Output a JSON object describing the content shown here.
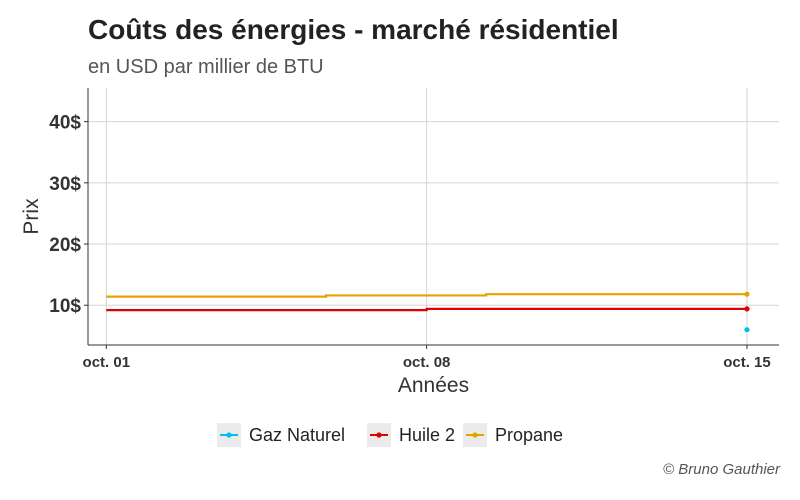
{
  "title": "Coûts des énergies - marché résidentiel",
  "subtitle": "en USD par millier de BTU",
  "caption": "© Bruno Gauthier",
  "chart_data": {
    "type": "line",
    "xlabel": "Années",
    "ylabel": "Prix",
    "x_ticks": [
      "oct. 01",
      "oct. 08",
      "oct. 15"
    ],
    "x_tick_values": [
      1,
      8,
      15
    ],
    "xlim": [
      0.6,
      15.7
    ],
    "y_ticks": [
      10,
      20,
      30,
      40
    ],
    "y_tick_labels": [
      "10$",
      "20$",
      "30$",
      "40$"
    ],
    "ylim": [
      3.5,
      45.5
    ],
    "grid": true,
    "legend_position": "bottom",
    "series": [
      {
        "name": "Gaz Naturel",
        "color": "#00BFE8",
        "x": [
          15
        ],
        "y": [
          6.0
        ]
      },
      {
        "name": "Huile 2",
        "color": "#E00000",
        "x": [
          1,
          8,
          8,
          15
        ],
        "y": [
          9.2,
          9.2,
          9.4,
          9.4
        ]
      },
      {
        "name": "Propane",
        "color": "#E8A200",
        "x": [
          1,
          5.8,
          5.8,
          9.3,
          9.3,
          15
        ],
        "y": [
          11.4,
          11.4,
          11.6,
          11.6,
          11.8,
          11.8
        ]
      }
    ]
  }
}
